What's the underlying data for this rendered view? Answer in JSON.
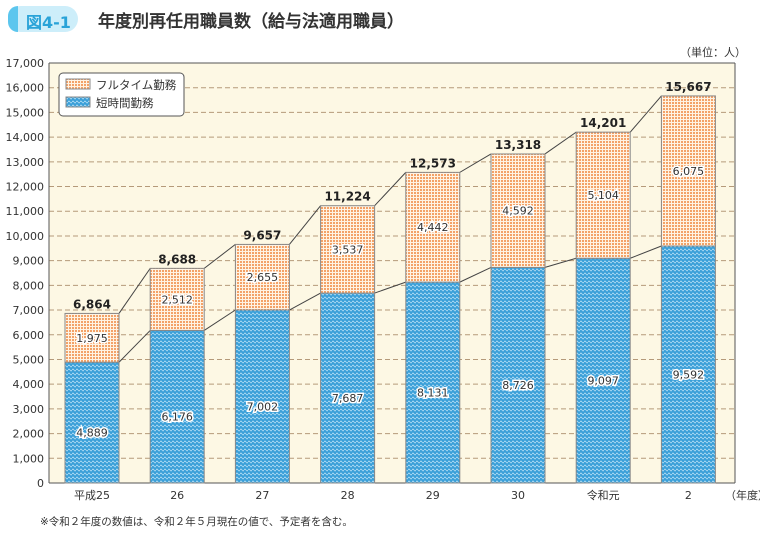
{
  "header": {
    "figure_label": "図4-1",
    "title": "年度別再任用職員数（給与法適用職員）",
    "unit": "（単位：人）"
  },
  "note": "※令和２年度の数値は、令和２年５月現在の値で、予定者を含む。",
  "chart_data": {
    "type": "bar",
    "stacked": true,
    "categories": [
      "平成25",
      "26",
      "27",
      "28",
      "29",
      "30",
      "令和元",
      "2"
    ],
    "xlabel_suffix": "（年度）",
    "ylim": [
      0,
      17000
    ],
    "yticks": [
      0,
      1000,
      2000,
      3000,
      4000,
      5000,
      6000,
      7000,
      8000,
      9000,
      10000,
      11000,
      12000,
      13000,
      14000,
      15000,
      16000,
      17000
    ],
    "ytick_labels": [
      "0",
      "1,000",
      "2,000",
      "3,000",
      "4,000",
      "5,000",
      "6,000",
      "7,000",
      "8,000",
      "9,000",
      "10,000",
      "11,000",
      "12,000",
      "13,000",
      "14,000",
      "15,000",
      "16,000",
      "17,000"
    ],
    "grid": true,
    "legend_position": "top-left",
    "series": [
      {
        "name": "短時間勤務",
        "values": [
          4889,
          6176,
          7002,
          7687,
          8131,
          8726,
          9097,
          9592
        ],
        "labels": [
          "4,889",
          "6,176",
          "7,002",
          "7,687",
          "8,131",
          "8,726",
          "9,097",
          "9,592"
        ],
        "color": "#3a9fd8"
      },
      {
        "name": "フルタイム勤務",
        "values": [
          1975,
          2512,
          2655,
          3537,
          4442,
          4592,
          5104,
          6075
        ],
        "labels": [
          "1,975",
          "2,512",
          "2,655",
          "3,537",
          "4,442",
          "4,592",
          "5,104",
          "6,075"
        ],
        "color": "#f3a268"
      }
    ],
    "totals": [
      6864,
      8688,
      9657,
      11224,
      12573,
      13318,
      14201,
      15667
    ],
    "total_labels": [
      "6,864",
      "8,688",
      "9,657",
      "11,224",
      "12,573",
      "13,318",
      "14,201",
      "15,667"
    ]
  }
}
